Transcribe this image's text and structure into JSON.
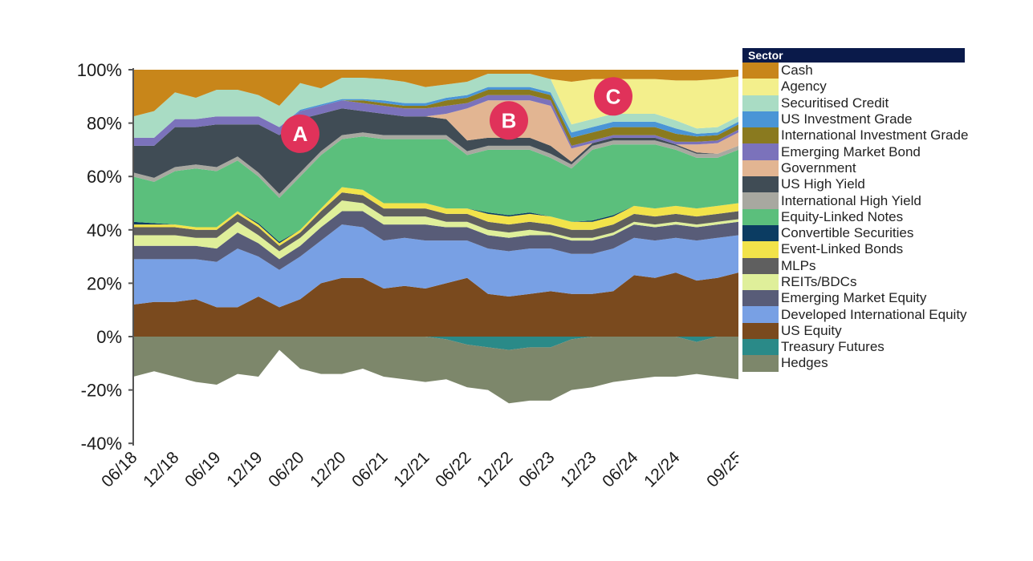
{
  "chart_data": {
    "type": "area",
    "stacked": true,
    "title": "",
    "xlabel": "",
    "ylabel": "",
    "ylim": [
      -40,
      100
    ],
    "yticks": [
      "100%",
      "80%",
      "60%",
      "40%",
      "20%",
      "0%",
      "-20%",
      "-40%"
    ],
    "ytick_values": [
      100,
      80,
      60,
      40,
      20,
      0,
      -20,
      -40
    ],
    "xtick_labels": [
      "06/18",
      "12/18",
      "06/19",
      "12/19",
      "06/20",
      "12/20",
      "06/21",
      "12/21",
      "06/22",
      "12/22",
      "06/23",
      "12/23",
      "06/24",
      "12/24",
      "09/25"
    ],
    "x": [
      "06/18",
      "09/18",
      "12/18",
      "03/19",
      "06/19",
      "09/19",
      "12/19",
      "03/20",
      "06/20",
      "09/20",
      "12/20",
      "03/21",
      "06/21",
      "09/21",
      "12/21",
      "03/22",
      "06/22",
      "09/22",
      "12/22",
      "03/23",
      "06/23",
      "09/23",
      "12/23",
      "03/24",
      "06/24",
      "09/24",
      "12/24",
      "03/25",
      "06/25",
      "09/25"
    ],
    "legend_title": "Sector",
    "legend_position": "right",
    "series": [
      {
        "name": "Cash",
        "color": "#c8861a",
        "values": [
          17.5,
          15.5,
          8.5,
          10.5,
          7.5,
          7.5,
          9.5,
          13.5,
          5,
          7,
          3,
          3,
          3.5,
          4.5,
          6.5,
          5.5,
          4.5,
          1.5,
          1.5,
          1.5,
          3.5,
          4.5,
          3.5,
          3.5,
          3.5,
          3.5,
          4,
          4,
          3.5,
          2.5
        ]
      },
      {
        "name": "Agency",
        "color": "#f3ef8c",
        "values": [
          0,
          0,
          0,
          0,
          0,
          0,
          0,
          0,
          0,
          0,
          0,
          0,
          0,
          0,
          0,
          0,
          0,
          0,
          0,
          0,
          0,
          16,
          15,
          13,
          13,
          13,
          15,
          18,
          18,
          15
        ]
      },
      {
        "name": "Securitised Credit",
        "color": "#a9dcc4",
        "values": [
          8,
          10,
          10,
          8,
          10,
          10,
          8,
          8,
          10,
          6,
          8,
          8,
          8,
          8,
          6,
          5,
          5,
          5,
          5,
          5,
          5,
          3,
          3,
          3,
          3,
          3,
          3,
          2,
          2,
          2
        ]
      },
      {
        "name": "US Investment Grade",
        "color": "#4a95d6",
        "values": [
          0,
          0,
          0,
          0,
          0,
          0,
          0,
          0,
          0.5,
          0.5,
          0.5,
          0.5,
          1,
          1,
          1,
          1,
          1,
          1,
          1,
          1,
          1,
          2,
          2,
          2,
          2,
          2,
          2,
          1,
          1,
          1
        ]
      },
      {
        "name": "International Investment Grade",
        "color": "#8a7a1f",
        "values": [
          0,
          0,
          0,
          0,
          0,
          0,
          0,
          0,
          0,
          0,
          0,
          1,
          1,
          1,
          1,
          2,
          2,
          2,
          2,
          2,
          2,
          3,
          3,
          3,
          3,
          3,
          3,
          2,
          2,
          2
        ]
      },
      {
        "name": "Emerging Market Bond",
        "color": "#7b72bb",
        "values": [
          3,
          3,
          3,
          3,
          3,
          3,
          3,
          3,
          3,
          3,
          3,
          3,
          3,
          3,
          3,
          3,
          2,
          2,
          2,
          2,
          2,
          1,
          1,
          1,
          1,
          1,
          1,
          1,
          1,
          1
        ]
      },
      {
        "name": "Government",
        "color": "#e2b592",
        "values": [
          0,
          0,
          0,
          0,
          0,
          0,
          0,
          0,
          0,
          0,
          0,
          0,
          0,
          0,
          0,
          2,
          12,
          14,
          14,
          14,
          15,
          5,
          0,
          0,
          0,
          0,
          0,
          3,
          4,
          5
        ]
      },
      {
        "name": "US High Yield",
        "color": "#404c55",
        "values": [
          10,
          12,
          15,
          14,
          16,
          12,
          18,
          22,
          20,
          14,
          10,
          8,
          8,
          7,
          7,
          6,
          4,
          3,
          3,
          3,
          3,
          1,
          1,
          1,
          1,
          1,
          0.5,
          0.5,
          0,
          0
        ]
      },
      {
        "name": "International High Yield",
        "color": "#a8a8a0",
        "values": [
          1.5,
          1.5,
          1.5,
          1.5,
          1.5,
          1.5,
          1.5,
          1.5,
          1.5,
          1.5,
          1.5,
          1.5,
          1.5,
          1.5,
          1.5,
          1.5,
          1.5,
          1.5,
          1.5,
          1.5,
          1.5,
          1.5,
          1.5,
          1.5,
          1.5,
          1.5,
          1.5,
          1.5,
          1.5,
          1.5
        ]
      },
      {
        "name": "Equity-Linked Notes",
        "color": "#5bbf7c",
        "values": [
          17,
          15.5,
          20,
          22,
          21,
          19,
          17.5,
          16.5,
          20,
          20,
          18,
          20,
          24,
          24,
          24,
          26,
          20,
          23.5,
          24.5,
          23.5,
          22,
          20,
          26.5,
          26.5,
          23,
          24,
          21,
          19,
          18,
          20
        ]
      },
      {
        "name": "Convertible Securities",
        "color": "#0b3c62",
        "values": [
          1,
          0.5,
          0,
          0,
          0,
          0,
          0.5,
          0.5,
          0,
          0,
          0,
          0,
          0,
          0,
          0,
          0,
          0,
          0.5,
          0.5,
          0.5,
          0,
          0,
          0.5,
          0.5,
          0,
          0,
          0,
          0,
          0,
          0
        ]
      },
      {
        "name": "Event-Linked Bonds",
        "color": "#f2e34a",
        "values": [
          1,
          1,
          1,
          1,
          1,
          1,
          1,
          1,
          1,
          1,
          2,
          2,
          2,
          2,
          2,
          2,
          2,
          3,
          3,
          3,
          3,
          3,
          3,
          3,
          3,
          3,
          3,
          3,
          3,
          3
        ]
      },
      {
        "name": "MLPs",
        "color": "#5f5f5f",
        "values": [
          3,
          3,
          3,
          3,
          3,
          3,
          3,
          2,
          2,
          3,
          3,
          3,
          3,
          3,
          3,
          3,
          3,
          3,
          3,
          3,
          3,
          3,
          3,
          3,
          3,
          3,
          3,
          3,
          3,
          3
        ]
      },
      {
        "name": "REITs/BDCs",
        "color": "#dfef9a",
        "values": [
          4,
          4,
          4,
          3,
          4,
          4,
          3,
          3,
          3,
          3,
          4,
          3,
          3,
          3,
          3,
          2,
          2,
          2,
          2,
          2,
          1,
          1,
          1,
          1,
          1,
          1,
          1,
          1,
          1,
          1
        ]
      },
      {
        "name": "Emerging Market Equity",
        "color": "#585c78",
        "values": [
          5,
          5,
          5,
          5,
          5,
          6,
          5,
          4,
          4,
          5,
          5,
          6,
          6,
          5,
          6,
          5,
          5,
          5,
          5,
          5,
          5,
          5,
          5,
          5,
          5,
          5,
          5,
          5,
          5,
          5
        ]
      },
      {
        "name": "Developed International Equity",
        "color": "#78a0e4",
        "values": [
          17,
          16,
          16,
          15,
          17,
          22,
          15,
          14,
          16,
          16,
          20,
          19,
          18,
          18,
          18,
          16,
          14,
          17,
          17,
          17,
          16,
          15,
          15,
          16,
          14,
          14,
          13,
          15,
          15,
          14
        ]
      },
      {
        "name": "US Equity",
        "color": "#7a4a1e",
        "values": [
          12,
          13,
          13,
          14,
          11,
          11,
          15,
          11,
          14,
          20,
          22,
          22,
          18,
          19,
          18,
          20,
          22,
          16,
          15,
          16,
          17,
          16,
          16,
          17,
          23,
          22,
          24,
          21,
          22,
          24
        ]
      },
      {
        "name": "Treasury Futures",
        "color": "#2a8a88",
        "values": [
          0,
          0,
          0,
          0,
          0,
          0,
          0,
          0,
          0,
          0,
          0,
          0,
          0,
          0,
          0,
          -1,
          -3,
          -4,
          -5,
          -4,
          -4,
          -1,
          0,
          0,
          0,
          0,
          0,
          -2,
          0,
          0
        ]
      },
      {
        "name": "Hedges",
        "color": "#7d876b",
        "values": [
          -15,
          -13,
          -15,
          -17,
          -18,
          -14,
          -15,
          -5,
          -12,
          -14,
          -14,
          -12,
          -15,
          -16,
          -17,
          -15,
          -16,
          -16,
          -20,
          -20,
          -20,
          -19,
          -19,
          -17,
          -16,
          -15,
          -15,
          -12,
          -15,
          -16
        ]
      }
    ],
    "annotations": [
      {
        "label": "A",
        "at": "06/20",
        "value": 76
      },
      {
        "label": "B",
        "at": "12/22",
        "value": 81
      },
      {
        "label": "C",
        "at": "03/24",
        "value": 90
      }
    ],
    "annotation_color": "#e0325a"
  }
}
